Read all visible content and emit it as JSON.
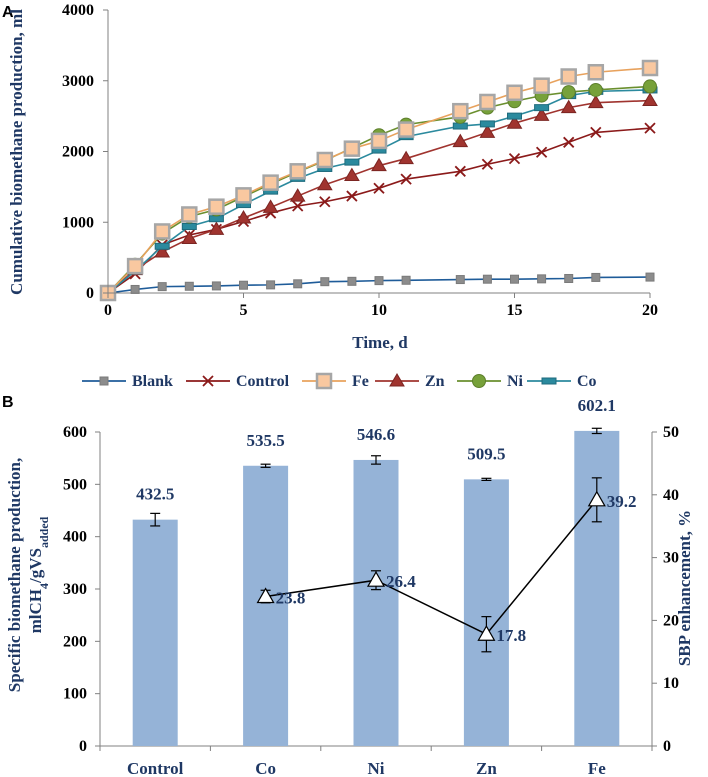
{
  "chart_data": [
    {
      "panel": "A",
      "type": "line",
      "xlabel": "Time, d",
      "ylabel": "Cumulative biomethane production, ml",
      "xlim": [
        0,
        20
      ],
      "ylim": [
        0,
        4000
      ],
      "xticks": [
        0,
        5,
        10,
        15,
        20
      ],
      "yticks": [
        0,
        1000,
        2000,
        3000,
        4000
      ],
      "x": [
        0,
        1,
        2,
        3,
        4,
        5,
        6,
        7,
        8,
        9,
        10,
        11,
        13,
        14,
        15,
        16,
        17,
        18,
        20
      ],
      "series": [
        {
          "name": "Blank",
          "color": "#1f5c99",
          "marker": "square-gray",
          "values": [
            0,
            50,
            90,
            95,
            100,
            110,
            115,
            130,
            160,
            165,
            175,
            180,
            190,
            195,
            195,
            200,
            205,
            220,
            225
          ]
        },
        {
          "name": "Control",
          "color": "#8b1a1a",
          "marker": "x",
          "values": [
            0,
            270,
            680,
            820,
            900,
            1010,
            1130,
            1230,
            1290,
            1370,
            1480,
            1610,
            1720,
            1820,
            1900,
            1990,
            2130,
            2270,
            2330
          ]
        },
        {
          "name": "Fe",
          "color": "#e8a25d",
          "marker": "square-peach",
          "values": [
            0,
            380,
            870,
            1110,
            1220,
            1380,
            1560,
            1720,
            1880,
            2040,
            2150,
            2310,
            2570,
            2700,
            2830,
            2930,
            3060,
            3120,
            3180
          ]
        },
        {
          "name": "Zn",
          "color": "#a0342f",
          "marker": "triangle",
          "values": [
            0,
            330,
            580,
            770,
            900,
            1060,
            1210,
            1370,
            1530,
            1660,
            1800,
            1900,
            2140,
            2270,
            2400,
            2510,
            2620,
            2690,
            2720
          ]
        },
        {
          "name": "Ni",
          "color": "#6a8f2e",
          "marker": "circle",
          "values": [
            0,
            400,
            840,
            1080,
            1180,
            1360,
            1540,
            1710,
            1870,
            2050,
            2230,
            2380,
            2490,
            2620,
            2710,
            2790,
            2840,
            2870,
            2920
          ]
        },
        {
          "name": "Co",
          "color": "#2b8a9e",
          "marker": "bar-dash",
          "values": [
            0,
            310,
            660,
            940,
            1050,
            1250,
            1440,
            1620,
            1760,
            1850,
            2020,
            2210,
            2360,
            2390,
            2500,
            2620,
            2790,
            2850,
            2870
          ]
        }
      ]
    },
    {
      "panel": "B",
      "type": "bar",
      "categories": [
        "Control",
        "Co",
        "Ni",
        "Zn",
        "Fe"
      ],
      "values": [
        432.5,
        535.5,
        546.6,
        509.5,
        602.1
      ],
      "value_labels": [
        "432.5",
        "535.5",
        "546.6",
        "509.5",
        "602.1"
      ],
      "bar_errors": [
        12,
        3,
        8,
        2,
        5
      ],
      "bar_color": "#95b3d7",
      "ylabel": "Specific biomethane production, mlCH4/gVSadded",
      "ylabel_main": "Specific biomethane production,",
      "ylabel_sub_prefix": "mlCH",
      "ylabel_sub_4": "4",
      "ylabel_sub_mid": "/gVS",
      "ylabel_sub_added": "added",
      "ylim": [
        0,
        600
      ],
      "yticks": [
        0,
        100,
        200,
        300,
        400,
        500,
        600
      ],
      "y2label": "SBP enhancement, %",
      "y2lim": [
        0,
        50
      ],
      "y2ticks": [
        0,
        10,
        20,
        30,
        40,
        50
      ],
      "enhancement": {
        "categories": [
          "Co",
          "Ni",
          "Zn",
          "Fe"
        ],
        "values": [
          23.8,
          26.4,
          17.8,
          39.2
        ],
        "labels": [
          "23.8",
          "26.4",
          "17.8",
          "39.2"
        ],
        "errors": [
          1.0,
          1.5,
          2.8,
          3.5
        ]
      }
    }
  ]
}
